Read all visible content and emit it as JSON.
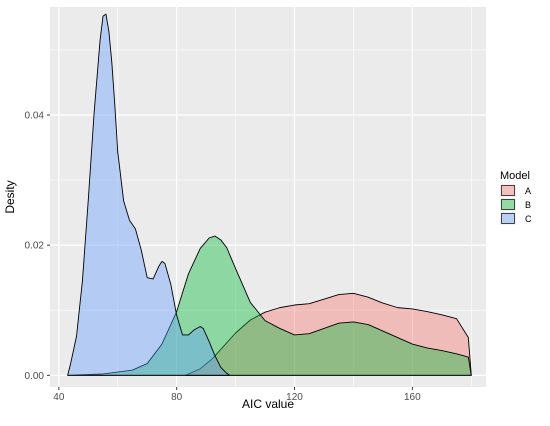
{
  "chart_data": {
    "type": "area",
    "subtype": "density",
    "title": "",
    "xlabel": "AIC value",
    "ylabel": "Desity",
    "xlim": [
      37,
      185
    ],
    "ylim": [
      -0.0018,
      0.0566
    ],
    "x_ticks": [
      40,
      80,
      120,
      160
    ],
    "y_ticks": [
      0.0,
      0.02,
      0.04
    ],
    "y_tick_labels": [
      "0.00",
      "0.02",
      "0.04"
    ],
    "grid": true,
    "legend": {
      "title": "Model",
      "position": "right"
    },
    "colors": {
      "A": "#F8766D",
      "B": "#00BA38",
      "C": "#619CFF"
    },
    "fill_alpha": 0.4,
    "panel_background": "#EBEBEB",
    "series": [
      {
        "name": "A",
        "x": [
          83,
          88,
          92,
          96,
          100,
          105,
          110,
          115,
          120,
          125,
          130,
          135,
          140,
          145,
          150,
          155,
          160,
          165,
          170,
          175,
          179,
          180
        ],
        "y": [
          0.0,
          0.001,
          0.0025,
          0.0045,
          0.0065,
          0.0085,
          0.0097,
          0.0104,
          0.0108,
          0.011,
          0.0117,
          0.0124,
          0.0126,
          0.012,
          0.0111,
          0.0104,
          0.0102,
          0.0098,
          0.0093,
          0.0087,
          0.0058,
          0.0
        ]
      },
      {
        "name": "B",
        "x": [
          43,
          55,
          65,
          70,
          75,
          80,
          84,
          88,
          91,
          93,
          95,
          97,
          100,
          105,
          110,
          115,
          120,
          125,
          130,
          135,
          140,
          145,
          150,
          155,
          160,
          165,
          170,
          175,
          179,
          180
        ],
        "y": [
          0.0,
          0.0002,
          0.0008,
          0.0018,
          0.0048,
          0.0098,
          0.0156,
          0.0195,
          0.0211,
          0.0214,
          0.0208,
          0.0196,
          0.0164,
          0.0112,
          0.0084,
          0.0072,
          0.0062,
          0.0064,
          0.0072,
          0.008,
          0.0082,
          0.0078,
          0.0068,
          0.0058,
          0.0048,
          0.0042,
          0.0038,
          0.0033,
          0.0028,
          0.0
        ]
      },
      {
        "name": "C",
        "x": [
          43,
          44,
          46,
          48,
          50,
          52,
          54,
          55,
          56,
          57,
          58,
          59,
          60,
          62,
          64,
          66,
          68,
          70,
          72,
          74,
          75,
          76,
          78,
          80,
          82,
          84,
          86,
          88,
          89,
          91,
          93,
          95,
          97,
          98
        ],
        "y": [
          0.0,
          0.0018,
          0.006,
          0.0145,
          0.027,
          0.0405,
          0.0515,
          0.0552,
          0.0555,
          0.0528,
          0.048,
          0.0415,
          0.0343,
          0.0268,
          0.0238,
          0.0225,
          0.0192,
          0.015,
          0.0148,
          0.0168,
          0.0175,
          0.0172,
          0.014,
          0.0092,
          0.0062,
          0.0062,
          0.007,
          0.0075,
          0.0072,
          0.0052,
          0.003,
          0.0012,
          0.0003,
          0.0
        ]
      }
    ]
  }
}
